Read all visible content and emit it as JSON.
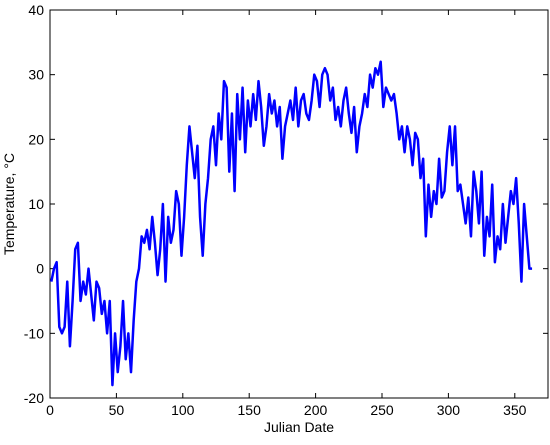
{
  "chart_data": {
    "type": "line",
    "x_label": "Julian Date",
    "y_label": "Temperature, °C",
    "xlim": [
      0,
      375
    ],
    "xticks": [
      0,
      50,
      100,
      150,
      200,
      250,
      300,
      350
    ],
    "ylim": [
      -20,
      40
    ],
    "yticks": [
      -20,
      -10,
      0,
      10,
      20,
      30,
      40
    ],
    "x": [
      1,
      3,
      5,
      7,
      9,
      11,
      13,
      15,
      17,
      19,
      21,
      23,
      25,
      27,
      29,
      31,
      33,
      35,
      37,
      39,
      41,
      43,
      45,
      47,
      49,
      51,
      53,
      55,
      57,
      59,
      61,
      63,
      65,
      67,
      69,
      71,
      73,
      75,
      77,
      79,
      81,
      83,
      85,
      87,
      89,
      91,
      93,
      95,
      97,
      99,
      101,
      103,
      105,
      107,
      109,
      111,
      113,
      115,
      117,
      119,
      121,
      123,
      125,
      127,
      129,
      131,
      133,
      135,
      137,
      139,
      141,
      143,
      145,
      147,
      149,
      151,
      153,
      155,
      157,
      159,
      161,
      163,
      165,
      167,
      169,
      171,
      173,
      175,
      177,
      179,
      181,
      183,
      185,
      187,
      189,
      191,
      193,
      195,
      197,
      199,
      201,
      203,
      205,
      207,
      209,
      211,
      213,
      215,
      217,
      219,
      221,
      223,
      225,
      227,
      229,
      231,
      233,
      235,
      237,
      239,
      241,
      243,
      245,
      247,
      249,
      251,
      253,
      255,
      257,
      259,
      261,
      263,
      265,
      267,
      269,
      271,
      273,
      275,
      277,
      279,
      281,
      283,
      285,
      287,
      289,
      291,
      293,
      295,
      297,
      299,
      301,
      303,
      305,
      307,
      309,
      311,
      313,
      315,
      317,
      319,
      321,
      323,
      325,
      327,
      329,
      331,
      333,
      335,
      337,
      339,
      341,
      343,
      345,
      347,
      349,
      351,
      353,
      355,
      357,
      359,
      361,
      363
    ],
    "series": [
      {
        "name": "Temperature",
        "color": "#0000ff",
        "values": [
          -2,
          0,
          1,
          -9,
          -10,
          -9,
          -2,
          -12,
          -5,
          3,
          4,
          -5,
          -2,
          -4,
          0,
          -4,
          -8,
          -2,
          -3,
          -7,
          -5,
          -10,
          -5,
          -18,
          -10,
          -16,
          -12,
          -5,
          -14,
          -10,
          -16,
          -8,
          -2,
          0,
          5,
          4,
          6,
          3,
          8,
          4,
          -1,
          3,
          10,
          -2,
          8,
          4,
          6,
          12,
          10,
          2,
          8,
          16,
          22,
          18,
          14,
          19,
          8,
          2,
          10,
          14,
          20,
          22,
          16,
          24,
          20,
          29,
          28,
          15,
          24,
          12,
          27,
          20,
          28,
          18,
          26,
          22,
          27,
          23,
          29,
          25,
          19,
          22,
          27,
          24,
          26,
          22,
          25,
          17,
          22,
          24,
          26,
          23,
          28,
          22,
          26,
          27,
          24,
          23,
          26,
          30,
          29,
          25,
          30,
          31,
          30,
          26,
          28,
          23,
          25,
          22,
          26,
          28,
          24,
          21,
          25,
          18,
          22,
          24,
          27,
          25,
          30,
          28,
          31,
          30,
          32,
          25,
          28,
          27,
          26,
          27,
          24,
          20,
          22,
          18,
          22,
          20,
          16,
          21,
          20,
          14,
          17,
          5,
          13,
          8,
          12,
          10,
          17,
          11,
          12,
          18,
          22,
          16,
          22,
          12,
          13,
          10,
          7,
          11,
          5,
          15,
          12,
          7,
          15,
          2,
          8,
          5,
          13,
          1,
          5,
          3,
          10,
          4,
          8,
          12,
          10,
          14,
          7,
          -2,
          10,
          5,
          0,
          0
        ]
      }
    ]
  }
}
